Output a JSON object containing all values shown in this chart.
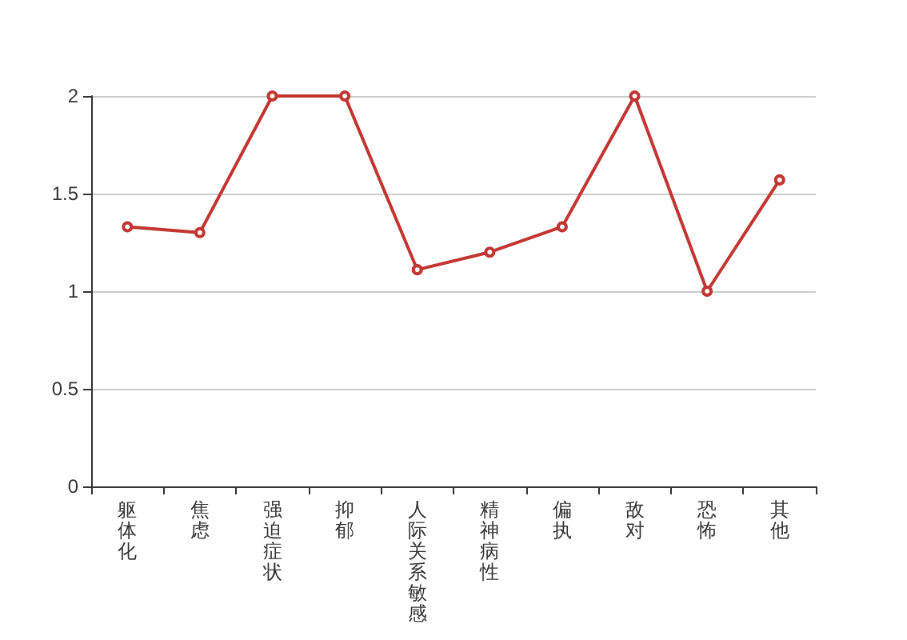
{
  "chart_data": {
    "type": "line",
    "categories": [
      "躯体化",
      "焦虑",
      "强迫症状",
      "抑郁",
      "人际关系敏感",
      "精神病性",
      "偏执",
      "敌对",
      "恐怖",
      "其他"
    ],
    "series": [
      {
        "color": "#c23531",
        "values": [
          1.33,
          1.3,
          2,
          2,
          1.11,
          1.2,
          1.33,
          2,
          1,
          1.57
        ]
      }
    ],
    "ylim": [
      0,
      2
    ],
    "yticks": [
      0,
      0.5,
      1,
      1.5,
      2
    ],
    "grid": "y",
    "marker": "circle",
    "line_style": "solid"
  }
}
